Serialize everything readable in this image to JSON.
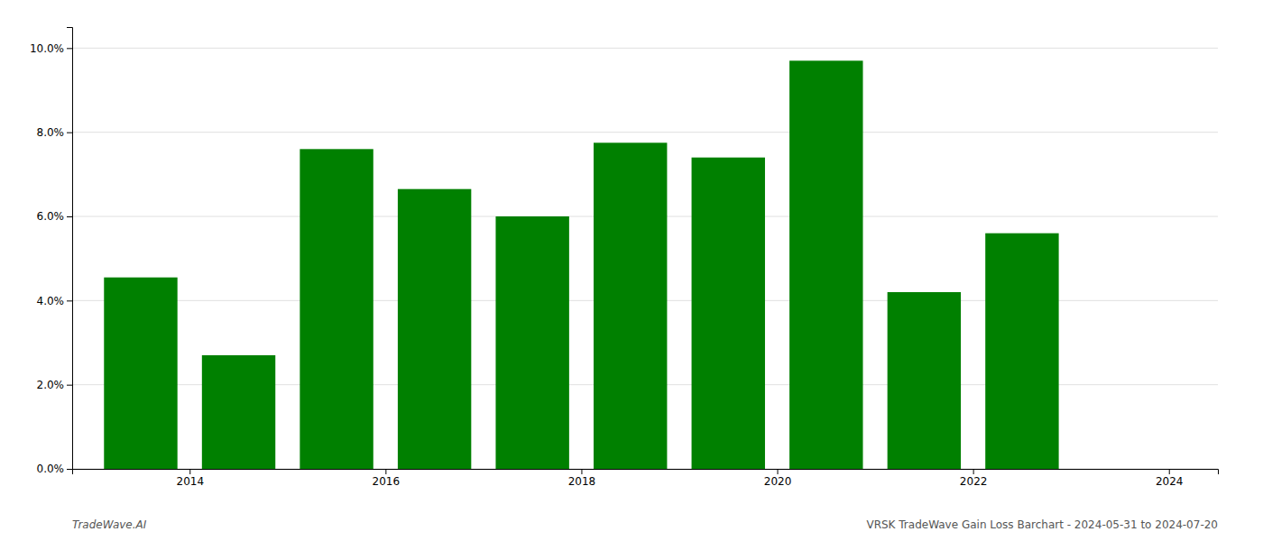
{
  "chart_data": {
    "type": "bar",
    "x": [
      2013.5,
      2014.5,
      2015.5,
      2016.5,
      2017.5,
      2018.5,
      2019.5,
      2020.5,
      2021.5,
      2022.5
    ],
    "values": [
      0.0455,
      0.027,
      0.076,
      0.0665,
      0.06,
      0.0775,
      0.074,
      0.097,
      0.042,
      0.056
    ],
    "color": "#008000",
    "xlim": [
      2012.8,
      2024.5
    ],
    "xticks": [
      2014,
      2016,
      2018,
      2020,
      2022,
      2024
    ],
    "ylim": [
      0,
      0.105
    ],
    "yticks": [
      {
        "value": 0.0,
        "label": "0.0%"
      },
      {
        "value": 0.02,
        "label": "2.0%"
      },
      {
        "value": 0.04,
        "label": "4.0%"
      },
      {
        "value": 0.06,
        "label": "6.0%"
      },
      {
        "value": 0.08,
        "label": "8.0%"
      },
      {
        "value": 0.1,
        "label": "10.0%"
      }
    ],
    "grid": true,
    "annotations": [
      "TradeWave.AI",
      "VRSK TradeWave Gain Loss Barchart - 2024-05-31 to 2024-07-20"
    ]
  }
}
